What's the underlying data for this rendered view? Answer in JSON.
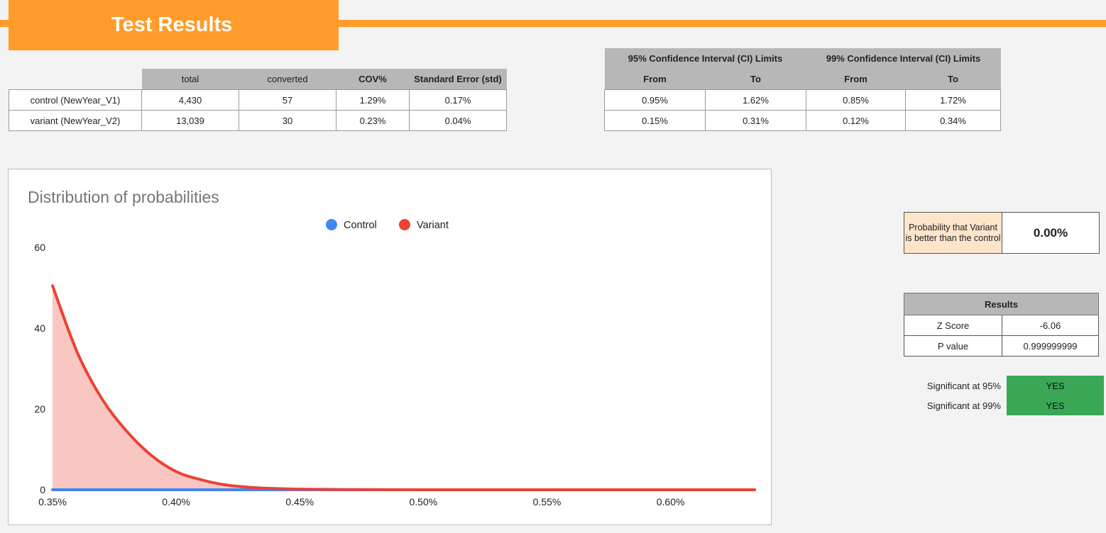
{
  "header": {
    "title": "Test Results"
  },
  "main_table": {
    "columns": [
      "",
      "total",
      "converted",
      "COV%",
      "Standard Error (std)"
    ],
    "rows": [
      [
        "control (NewYear_V1)",
        "4,430",
        "57",
        "1.29%",
        "0.17%"
      ],
      [
        "variant (NewYear_V2)",
        "13,039",
        "30",
        "0.23%",
        "0.04%"
      ]
    ]
  },
  "ci_table": {
    "group_headers": [
      "95% Confidence Interval (CI) Limits",
      "99% Confidence Interval (CI) Limits"
    ],
    "sub_headers": [
      "From",
      "To",
      "From",
      "To"
    ],
    "rows": [
      [
        "0.95%",
        "1.62%",
        "0.85%",
        "1.72%"
      ],
      [
        "0.15%",
        "0.31%",
        "0.12%",
        "0.34%"
      ]
    ]
  },
  "probability": {
    "label": "Probability that Variant is better than the control",
    "value": "0.00%",
    "label_color": "#fde5cc"
  },
  "results": {
    "header": "Results",
    "rows": [
      [
        "Z Score",
        "-6.06"
      ],
      [
        "P value",
        "0.999999999"
      ]
    ]
  },
  "significance": {
    "rows": [
      [
        "Significant at 95%",
        "YES"
      ],
      [
        "Significant at 99%",
        "YES"
      ]
    ],
    "color": "#3aa757"
  },
  "chart_data": {
    "type": "area",
    "title": "Distribution of probabilities",
    "legend_position": "top",
    "xlabel": "",
    "ylabel": "",
    "x_ticks": [
      "0.35%",
      "0.40%",
      "0.45%",
      "0.50%",
      "0.55%",
      "0.60%"
    ],
    "y_ticks": [
      "0",
      "20",
      "40",
      "60"
    ],
    "xlim": [
      0.35,
      0.634
    ],
    "ylim": [
      0,
      60
    ],
    "series": [
      {
        "name": "Control",
        "color": "#4285f4",
        "x": [
          0.35,
          0.4,
          0.45,
          0.5,
          0.55,
          0.6,
          0.634
        ],
        "y": [
          0,
          0,
          0,
          0,
          0,
          0,
          0
        ]
      },
      {
        "name": "Variant",
        "color": "#ea4335",
        "x": [
          0.35,
          0.36,
          0.37,
          0.38,
          0.39,
          0.4,
          0.41,
          0.42,
          0.43,
          0.44,
          0.45,
          0.47,
          0.5,
          0.55,
          0.6,
          0.634
        ],
        "y": [
          50.5,
          34.0,
          22.5,
          14.5,
          8.5,
          4.5,
          2.5,
          1.2,
          0.6,
          0.3,
          0.15,
          0.05,
          0,
          0,
          0,
          0
        ]
      }
    ]
  }
}
